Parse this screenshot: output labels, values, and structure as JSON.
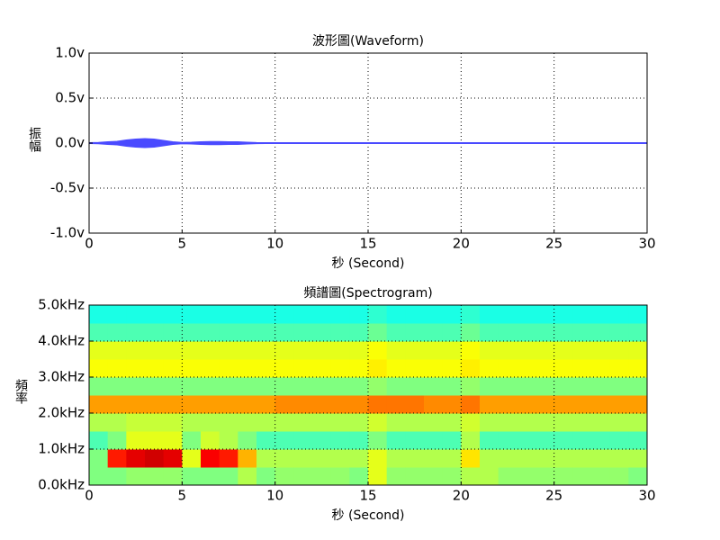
{
  "chart_data": [
    {
      "type": "envelope",
      "title": "波形圖(Waveform)",
      "x_label": "秒 (Second)",
      "y_label": "振幅",
      "color": "#4a4aff",
      "x": [
        0,
        0.5,
        1,
        1.5,
        2,
        2.5,
        3,
        3.5,
        4,
        4.5,
        5,
        5.5,
        6,
        6.5,
        7,
        7.5,
        8,
        8.5,
        9,
        9.5,
        10,
        10.5,
        11,
        11.5,
        12,
        12.5,
        13,
        13.5,
        14,
        14.5,
        15,
        15.5,
        16,
        16.5,
        17,
        17.5,
        18,
        18.5,
        19,
        19.5,
        20,
        20.5,
        21,
        21.5,
        22,
        22.5,
        23,
        23.5,
        24,
        24.5,
        25,
        25.5,
        26,
        26.5,
        27,
        27.5,
        28,
        28.5,
        29,
        29.5,
        30
      ],
      "values": [
        0.005,
        0.008,
        0.015,
        0.02,
        0.035,
        0.045,
        0.05,
        0.045,
        0.03,
        0.015,
        0.008,
        0.01,
        0.015,
        0.018,
        0.018,
        0.015,
        0.015,
        0.01,
        0.006,
        0.005,
        0.005,
        0.005,
        0.005,
        0.005,
        0.005,
        0.005,
        0.005,
        0.005,
        0.005,
        0.005,
        0.005,
        0.005,
        0.005,
        0.005,
        0.005,
        0.005,
        0.005,
        0.005,
        0.005,
        0.005,
        0.005,
        0.005,
        0.005,
        0.005,
        0.005,
        0.005,
        0.005,
        0.005,
        0.005,
        0.005,
        0.005,
        0.005,
        0.005,
        0.005,
        0.005,
        0.005,
        0.005,
        0.005,
        0.005,
        0.005,
        0.005
      ],
      "xlim": [
        0,
        30
      ],
      "xticks": [
        0,
        5,
        10,
        15,
        20,
        25,
        30
      ],
      "ylim": [
        -1,
        1
      ],
      "yticks": [
        {
          "value": -1,
          "label": "-1.0v"
        },
        {
          "value": -0.5,
          "label": "-0.5v"
        },
        {
          "value": 0,
          "label": "0.0v"
        },
        {
          "value": 0.5,
          "label": "0.5v"
        },
        {
          "value": 1,
          "label": "1.0v"
        }
      ],
      "grid": true
    },
    {
      "type": "heatmap",
      "title": "頻譜圖(Spectrogram)",
      "x_label": "秒 (Second)",
      "y_label": "頻率",
      "colormap": "jet",
      "xbins": [
        0,
        1,
        2,
        3,
        4,
        5,
        6,
        7,
        8,
        9,
        10,
        11,
        12,
        13,
        14,
        15,
        16,
        17,
        18,
        19,
        20,
        21,
        22,
        23,
        24,
        25,
        26,
        27,
        28,
        29,
        30
      ],
      "ybins": [
        0,
        0.5,
        1,
        1.5,
        2,
        2.5,
        3,
        3.5,
        4,
        4.5,
        5
      ],
      "values": [
        [
          0.5,
          0.5,
          0.52,
          0.52,
          0.52,
          0.5,
          0.5,
          0.5,
          0.55,
          0.5,
          0.52,
          0.52,
          0.52,
          0.52,
          0.5,
          0.6,
          0.52,
          0.52,
          0.52,
          0.52,
          0.55,
          0.55,
          0.52,
          0.52,
          0.52,
          0.52,
          0.52,
          0.52,
          0.52,
          0.5
        ],
        [
          0.5,
          0.85,
          0.9,
          0.92,
          0.9,
          0.6,
          0.88,
          0.85,
          0.7,
          0.55,
          0.55,
          0.55,
          0.55,
          0.55,
          0.55,
          0.6,
          0.55,
          0.55,
          0.55,
          0.55,
          0.65,
          0.55,
          0.55,
          0.55,
          0.55,
          0.55,
          0.55,
          0.55,
          0.55,
          0.55
        ],
        [
          0.45,
          0.5,
          0.6,
          0.6,
          0.6,
          0.5,
          0.58,
          0.55,
          0.5,
          0.45,
          0.45,
          0.45,
          0.45,
          0.45,
          0.45,
          0.5,
          0.45,
          0.45,
          0.45,
          0.45,
          0.55,
          0.45,
          0.45,
          0.45,
          0.45,
          0.45,
          0.45,
          0.45,
          0.45,
          0.45
        ],
        [
          0.55,
          0.55,
          0.57,
          0.57,
          0.57,
          0.55,
          0.55,
          0.55,
          0.55,
          0.55,
          0.55,
          0.55,
          0.55,
          0.55,
          0.55,
          0.58,
          0.55,
          0.55,
          0.55,
          0.55,
          0.58,
          0.55,
          0.55,
          0.55,
          0.55,
          0.55,
          0.55,
          0.55,
          0.55,
          0.55
        ],
        [
          0.72,
          0.72,
          0.72,
          0.72,
          0.72,
          0.72,
          0.72,
          0.72,
          0.72,
          0.72,
          0.74,
          0.74,
          0.74,
          0.74,
          0.74,
          0.76,
          0.76,
          0.76,
          0.74,
          0.74,
          0.76,
          0.72,
          0.72,
          0.72,
          0.72,
          0.72,
          0.72,
          0.72,
          0.72,
          0.72
        ],
        [
          0.5,
          0.5,
          0.5,
          0.5,
          0.5,
          0.5,
          0.5,
          0.5,
          0.5,
          0.5,
          0.5,
          0.5,
          0.5,
          0.5,
          0.5,
          0.52,
          0.5,
          0.5,
          0.5,
          0.5,
          0.52,
          0.5,
          0.5,
          0.5,
          0.5,
          0.5,
          0.5,
          0.5,
          0.5,
          0.5
        ],
        [
          0.62,
          0.62,
          0.62,
          0.62,
          0.62,
          0.62,
          0.62,
          0.62,
          0.62,
          0.62,
          0.62,
          0.62,
          0.62,
          0.62,
          0.62,
          0.64,
          0.62,
          0.62,
          0.62,
          0.62,
          0.64,
          0.62,
          0.62,
          0.62,
          0.62,
          0.62,
          0.62,
          0.62,
          0.62,
          0.62
        ],
        [
          0.6,
          0.6,
          0.6,
          0.6,
          0.6,
          0.6,
          0.6,
          0.6,
          0.6,
          0.6,
          0.6,
          0.6,
          0.6,
          0.6,
          0.6,
          0.62,
          0.6,
          0.6,
          0.6,
          0.6,
          0.62,
          0.6,
          0.6,
          0.6,
          0.6,
          0.6,
          0.6,
          0.6,
          0.6,
          0.6
        ],
        [
          0.45,
          0.45,
          0.45,
          0.45,
          0.45,
          0.45,
          0.45,
          0.45,
          0.45,
          0.45,
          0.45,
          0.45,
          0.45,
          0.45,
          0.45,
          0.48,
          0.45,
          0.45,
          0.45,
          0.45,
          0.48,
          0.45,
          0.45,
          0.45,
          0.45,
          0.45,
          0.45,
          0.45,
          0.45,
          0.45
        ],
        [
          0.4,
          0.4,
          0.4,
          0.4,
          0.4,
          0.4,
          0.4,
          0.4,
          0.4,
          0.4,
          0.4,
          0.4,
          0.4,
          0.4,
          0.4,
          0.42,
          0.4,
          0.4,
          0.4,
          0.4,
          0.42,
          0.4,
          0.4,
          0.4,
          0.4,
          0.4,
          0.4,
          0.4,
          0.4,
          0.4
        ]
      ],
      "xlim": [
        0,
        30
      ],
      "xticks": [
        0,
        5,
        10,
        15,
        20,
        25,
        30
      ],
      "ylim": [
        0,
        5
      ],
      "yticks": [
        {
          "value": 0,
          "label": "0.0kHz"
        },
        {
          "value": 1,
          "label": "1.0kHz"
        },
        {
          "value": 2,
          "label": "2.0kHz"
        },
        {
          "value": 3,
          "label": "3.0kHz"
        },
        {
          "value": 4,
          "label": "4.0kHz"
        },
        {
          "value": 5,
          "label": "5.0kHz"
        }
      ],
      "grid": true
    }
  ]
}
